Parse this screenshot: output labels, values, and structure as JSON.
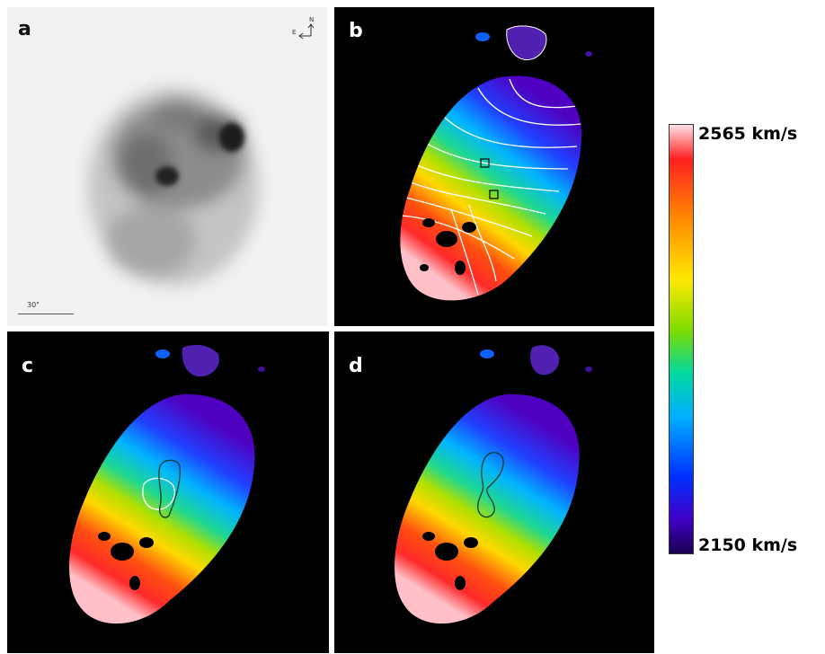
{
  "panels": {
    "a": {
      "label": "a",
      "scale_label": "30\"",
      "compass_n": "N",
      "compass_e": "E"
    },
    "b": {
      "label": "b"
    },
    "c": {
      "label": "c"
    },
    "d": {
      "label": "d"
    }
  },
  "colorbar": {
    "max_label": "2565 km/s",
    "min_label": "2150 km/s",
    "colors": [
      "#ffe0e6",
      "#ff2020",
      "#ff8a00",
      "#ffe800",
      "#7ddc00",
      "#00d9a0",
      "#00b0ff",
      "#0030ff",
      "#4000c8",
      "#1a0050"
    ]
  }
}
